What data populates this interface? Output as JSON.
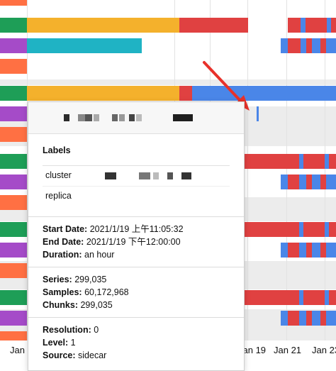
{
  "axis": {
    "ticks": [
      {
        "label": "Jan"
      },
      {
        "label": "Jan 19"
      },
      {
        "label": "Jan 21"
      },
      {
        "label": "Jan 23"
      }
    ]
  },
  "tooltip": {
    "header_title": "",
    "labels_heading": "Labels",
    "labels": [
      {
        "name": "cluster",
        "value": ""
      },
      {
        "name": "replica",
        "value": ""
      }
    ],
    "time": {
      "start_key": "Start Date:",
      "start_value": "2021/1/19 上午11:05:32",
      "end_key": "End Date:",
      "end_value": "2021/1/19 下午12:00:00",
      "duration_key": "Duration:",
      "duration_value": "an hour"
    },
    "stats": {
      "series_key": "Series:",
      "series_value": "299,035",
      "samples_key": "Samples:",
      "samples_value": "60,172,968",
      "chunks_key": "Chunks:",
      "chunks_value": "299,035"
    },
    "meta": {
      "resolution_key": "Resolution:",
      "resolution_value": "0",
      "level_key": "Level:",
      "level_value": "1",
      "source_key": "Source:",
      "source_value": "sidecar"
    }
  },
  "colors": {
    "green": "#1e9e57",
    "purple": "#a54bc8",
    "orange": "#ff7043",
    "yellow": "#f4b12c",
    "teal": "#1fb3c4",
    "red": "#e04141",
    "blue": "#4a86e8",
    "arrow": "#e8312a"
  }
}
